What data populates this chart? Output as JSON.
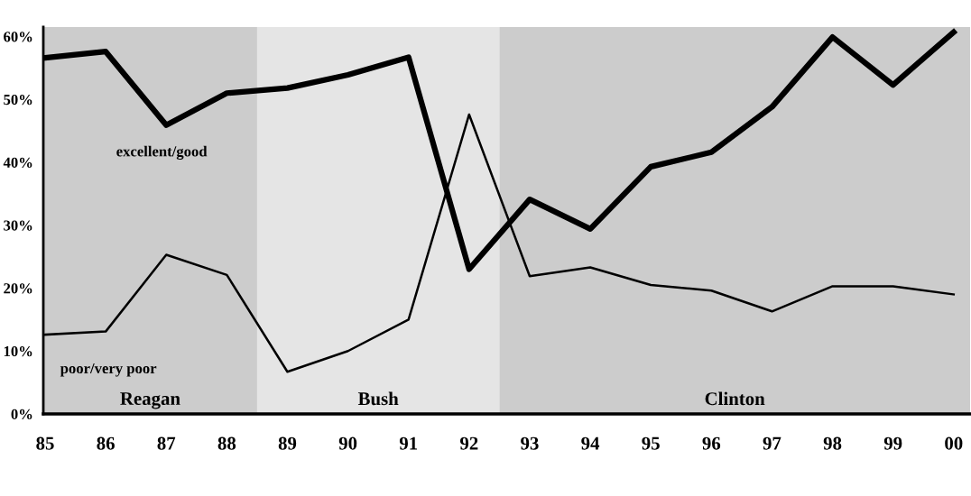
{
  "chart_data": {
    "type": "line",
    "categories": [
      "85",
      "86",
      "87",
      "88",
      "89",
      "90",
      "91",
      "92",
      "93",
      "94",
      "95",
      "96",
      "97",
      "98",
      "99",
      "00"
    ],
    "series": [
      {
        "name": "excellent/good",
        "color": "#000000",
        "values": [
          56.6,
          57.6,
          45.9,
          51.0,
          51.8,
          53.9,
          56.7,
          23.0,
          34.1,
          29.4,
          39.3,
          41.6,
          48.8,
          59.9,
          52.3,
          60.7
        ]
      },
      {
        "name": "poor/very poor",
        "color": "#000000",
        "values": [
          12.6,
          13.1,
          25.3,
          22.1,
          6.7,
          10.0,
          15.0,
          47.6,
          21.9,
          23.3,
          20.5,
          19.6,
          16.3,
          20.3,
          20.3,
          19.0
        ]
      }
    ],
    "ylim": [
      0,
      61.5
    ],
    "yticks": [
      {
        "value": 0,
        "label": "0%"
      },
      {
        "value": 10,
        "label": "10%"
      },
      {
        "value": 20,
        "label": "20%"
      },
      {
        "value": 30,
        "label": "30%"
      },
      {
        "value": 40,
        "label": "40%"
      },
      {
        "value": 50,
        "label": "50%"
      },
      {
        "value": 60,
        "label": "60%"
      }
    ],
    "bands": [
      {
        "axis": "x",
        "from": "85",
        "to": "88",
        "label": "Reagan",
        "color": "#cccccc"
      },
      {
        "axis": "x",
        "from": "89",
        "to": "92",
        "label": "Bush",
        "color": "#e5e5e5"
      },
      {
        "axis": "x",
        "from": "93",
        "to": "00",
        "label": "Clinton",
        "color": "#cccccc"
      }
    ],
    "grid": false,
    "legend": false,
    "marker": "none",
    "line_style": "solid"
  }
}
